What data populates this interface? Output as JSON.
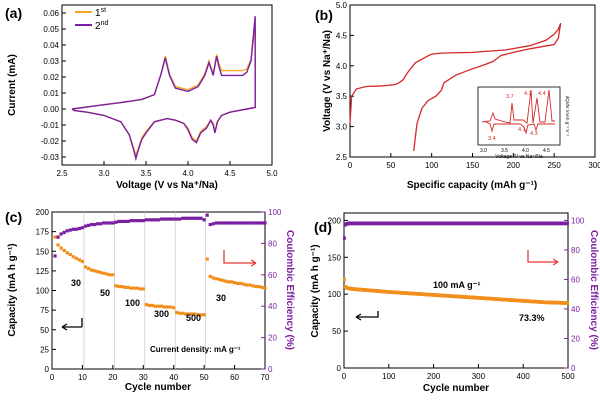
{
  "chart_data": [
    {
      "type": "line",
      "panel": "(a)",
      "xlabel": "Voltage (V vs Na⁺/Na)",
      "ylabel": "Current (mA)",
      "xlim": [
        2.5,
        5.0
      ],
      "ylim": [
        -0.035,
        0.065
      ],
      "xticks": [
        "2.5",
        "3.0",
        "3.5",
        "4.0",
        "4.5",
        "5.0"
      ],
      "yticks": [
        "-0.03",
        "-0.02",
        "-0.01",
        "0.00",
        "0.01",
        "0.02",
        "0.03",
        "0.04",
        "0.05",
        "0.06"
      ],
      "legend_placement": "top-left",
      "series": [
        {
          "name": "1st",
          "legend_main": "1",
          "legend_sup": "st",
          "color": "#f5a623",
          "oxidation_x": [
            2.62,
            2.9,
            3.2,
            3.45,
            3.6,
            3.68,
            3.73,
            3.78,
            3.85,
            4.0,
            4.12,
            4.2,
            4.25,
            4.3,
            4.34,
            4.37,
            4.4,
            4.45,
            4.5,
            4.55,
            4.6,
            4.65,
            4.7,
            4.75,
            4.8
          ],
          "oxidation_y": [
            0.0,
            0.002,
            0.004,
            0.006,
            0.009,
            0.022,
            0.033,
            0.022,
            0.014,
            0.012,
            0.015,
            0.022,
            0.03,
            0.022,
            0.034,
            0.028,
            0.024,
            0.024,
            0.024,
            0.024,
            0.024,
            0.024,
            0.025,
            0.031,
            0.052
          ],
          "reduction_x": [
            4.8,
            4.7,
            4.6,
            4.5,
            4.4,
            4.35,
            4.32,
            4.3,
            4.27,
            4.22,
            4.15,
            4.1,
            4.05,
            4.0,
            3.95,
            3.85,
            3.75,
            3.6,
            3.5,
            3.45,
            3.4,
            3.38,
            3.35,
            3.3,
            3.2,
            3.0,
            2.8,
            2.65,
            2.62
          ],
          "reduction_y": [
            0.001,
            0.0,
            -0.001,
            -0.002,
            -0.004,
            -0.008,
            -0.014,
            -0.009,
            -0.007,
            -0.011,
            -0.014,
            -0.02,
            -0.018,
            -0.012,
            -0.009,
            -0.007,
            -0.006,
            -0.008,
            -0.014,
            -0.018,
            -0.026,
            -0.029,
            -0.024,
            -0.016,
            -0.008,
            -0.004,
            -0.002,
            -0.001,
            0.0
          ]
        },
        {
          "name": "2nd",
          "legend_main": "2",
          "legend_sup": "nd",
          "color": "#7b1fa2",
          "oxidation_x": [
            2.62,
            2.9,
            3.2,
            3.45,
            3.6,
            3.68,
            3.73,
            3.78,
            3.85,
            4.0,
            4.12,
            4.2,
            4.25,
            4.3,
            4.34,
            4.37,
            4.4,
            4.45,
            4.5,
            4.55,
            4.6,
            4.65,
            4.7,
            4.75,
            4.8
          ],
          "oxidation_y": [
            0.0,
            0.002,
            0.004,
            0.006,
            0.009,
            0.022,
            0.032,
            0.021,
            0.013,
            0.011,
            0.014,
            0.021,
            0.029,
            0.021,
            0.033,
            0.026,
            0.021,
            0.021,
            0.021,
            0.021,
            0.021,
            0.021,
            0.023,
            0.03,
            0.058
          ],
          "reduction_x": [
            4.8,
            4.7,
            4.6,
            4.5,
            4.4,
            4.35,
            4.32,
            4.3,
            4.27,
            4.22,
            4.15,
            4.1,
            4.05,
            4.0,
            3.95,
            3.85,
            3.75,
            3.6,
            3.5,
            3.45,
            3.4,
            3.38,
            3.35,
            3.3,
            3.2,
            3.0,
            2.8,
            2.65,
            2.62
          ],
          "reduction_y": [
            0.001,
            0.0,
            -0.001,
            -0.002,
            -0.004,
            -0.008,
            -0.015,
            -0.01,
            -0.007,
            -0.012,
            -0.015,
            -0.021,
            -0.019,
            -0.013,
            -0.009,
            -0.007,
            -0.006,
            -0.008,
            -0.015,
            -0.019,
            -0.027,
            -0.031,
            -0.025,
            -0.016,
            -0.008,
            -0.004,
            -0.002,
            -0.001,
            0.0
          ]
        }
      ]
    },
    {
      "type": "line",
      "panel": "(b)",
      "xlabel": "Specific capacity (mAh g⁻¹)",
      "ylabel": "Voltage (V vs Na⁺/Na)",
      "xlim": [
        0,
        300
      ],
      "ylim": [
        2.5,
        5.0
      ],
      "xticks": [
        "0",
        "50",
        "100",
        "150",
        "200",
        "250",
        "300"
      ],
      "yticks": [
        "2.5",
        "3.0",
        "3.5",
        "4.0",
        "4.5",
        "5.0"
      ],
      "color": "#d62728",
      "series": [
        {
          "name": "",
          "x": [
            0,
            2,
            8,
            20,
            40,
            55,
            60,
            65,
            70,
            80,
            95,
            100,
            105,
            115,
            150,
            190,
            220,
            240,
            250,
            255,
            257,
            258,
            255,
            250,
            220,
            200,
            185,
            180,
            175,
            165,
            150,
            130,
            115,
            112,
            105,
            100,
            97,
            95,
            88,
            82,
            78
          ],
          "y": [
            3.05,
            3.5,
            3.62,
            3.66,
            3.67,
            3.69,
            3.72,
            3.77,
            3.88,
            4.05,
            4.16,
            4.19,
            4.2,
            4.21,
            4.22,
            4.26,
            4.33,
            4.42,
            4.52,
            4.6,
            4.67,
            4.7,
            4.45,
            4.35,
            4.28,
            4.22,
            4.17,
            4.12,
            4.07,
            4.02,
            3.95,
            3.85,
            3.72,
            3.6,
            3.5,
            3.46,
            3.44,
            3.42,
            3.3,
            3.05,
            2.6
          ]
        }
      ],
      "inset": {
        "type": "line",
        "xlabel": "Voltage /V vs Na⁺/Na",
        "ylabel": "dQ/dV /mAh g⁻¹ V⁻¹",
        "xlim": [
          3.0,
          4.7
        ],
        "xticks": [
          "3.0",
          "3.5",
          "4.0",
          "4.5"
        ],
        "peak_labels": [
          "3.7",
          "4.2",
          "4.4",
          "3.4",
          "4.1",
          "4.3"
        ],
        "color": "#d62728"
      }
    },
    {
      "type": "scatter",
      "panel": "(c)",
      "xlabel": "Cycle number",
      "ylabel": "Capacity (mA h g⁻¹)",
      "y2label": "Coulombic Efficiency (%)",
      "xlim": [
        0,
        70
      ],
      "ylim": [
        0,
        200
      ],
      "y2lim": [
        0,
        100
      ],
      "xticks": [
        "0",
        "10",
        "20",
        "30",
        "40",
        "50",
        "60",
        "70"
      ],
      "yticks": [
        "0",
        "25",
        "50",
        "75",
        "100",
        "125",
        "150",
        "175",
        "200"
      ],
      "y2ticks": [
        "0",
        "20",
        "40",
        "60",
        "80",
        "100"
      ],
      "rate_labels": [
        "30",
        "50",
        "100",
        "300",
        "500",
        "30"
      ],
      "annotation": "Current density: mA g⁻¹",
      "capacity_color": "#f28e1c",
      "ce_color": "#7b1fa2",
      "capacity": {
        "x": [
          1,
          2,
          3,
          4,
          5,
          6,
          7,
          8,
          9,
          10,
          11,
          12,
          13,
          14,
          15,
          16,
          17,
          18,
          19,
          20,
          21,
          22,
          23,
          24,
          25,
          26,
          27,
          28,
          29,
          30,
          31,
          32,
          33,
          34,
          35,
          36,
          37,
          38,
          39,
          40,
          41,
          42,
          43,
          44,
          45,
          46,
          47,
          48,
          49,
          50,
          51,
          52,
          53,
          54,
          55,
          56,
          57,
          58,
          59,
          60,
          61,
          62,
          63,
          64,
          65,
          66,
          67,
          68,
          69,
          70
        ],
        "y": [
          168,
          158,
          154,
          151,
          148,
          146,
          143,
          141,
          139,
          137,
          130,
          128,
          126,
          125,
          124,
          123,
          122,
          121,
          120,
          120,
          106,
          105,
          105,
          104,
          104,
          103,
          103,
          103,
          102,
          102,
          82,
          81,
          81,
          80,
          80,
          80,
          79,
          79,
          79,
          78,
          72,
          71,
          71,
          70,
          70,
          70,
          70,
          69,
          69,
          69,
          140,
          118,
          116,
          115,
          114,
          113,
          112,
          111,
          111,
          110,
          109,
          109,
          108,
          107,
          107,
          106,
          105,
          105,
          104,
          103
        ]
      },
      "coulombic_efficiency": {
        "x": [
          1,
          2,
          3,
          4,
          5,
          6,
          7,
          8,
          9,
          10,
          11,
          12,
          13,
          14,
          15,
          16,
          17,
          18,
          19,
          20,
          21,
          22,
          23,
          24,
          25,
          26,
          27,
          28,
          29,
          30,
          31,
          32,
          33,
          34,
          35,
          36,
          37,
          38,
          39,
          40,
          41,
          42,
          43,
          44,
          45,
          46,
          47,
          48,
          49,
          50,
          51,
          52,
          53,
          54,
          55,
          56,
          57,
          58,
          59,
          60,
          61,
          62,
          63,
          64,
          65,
          66,
          67,
          68,
          69,
          70
        ],
        "y": [
          72,
          84,
          86,
          87,
          88,
          88.5,
          89,
          89,
          89.5,
          90,
          91,
          91.5,
          92,
          92,
          92.5,
          92.5,
          93,
          93,
          93,
          93,
          93.5,
          94,
          94,
          94,
          94,
          94.5,
          94.5,
          94.5,
          94.5,
          94.5,
          95,
          95,
          95,
          95,
          95,
          95.5,
          95.5,
          95.5,
          95.5,
          95.5,
          95.5,
          95.5,
          96,
          96,
          96,
          96,
          96,
          96,
          96,
          95,
          98,
          92,
          92.5,
          93,
          93,
          93,
          93,
          93,
          93,
          93,
          93,
          93,
          93,
          93,
          93,
          93,
          93,
          93,
          93,
          93
        ]
      }
    },
    {
      "type": "scatter",
      "panel": "(d)",
      "xlabel": "Cycle number",
      "ylabel": "Capacity (mA h g⁻¹)",
      "y2label": "Coulombic Efficiency (%)",
      "xlim": [
        0,
        500
      ],
      "ylim": [
        0,
        210
      ],
      "y2lim": [
        0,
        105
      ],
      "xticks": [
        "0",
        "100",
        "200",
        "300",
        "400",
        "500"
      ],
      "yticks": [
        "0",
        "50",
        "100",
        "150",
        "200"
      ],
      "y2ticks": [
        "0",
        "20",
        "40",
        "60",
        "80",
        "100"
      ],
      "current_label": "100 mA g⁻¹",
      "retention_label": "73.3%",
      "capacity_color": "#f28e1c",
      "ce_color": "#7b1fa2",
      "capacity": {
        "x": [
          1,
          2,
          3,
          5,
          10,
          20,
          40,
          60,
          80,
          100,
          150,
          200,
          250,
          300,
          350,
          400,
          450,
          500
        ],
        "y": [
          120,
          112,
          110,
          109,
          108,
          107,
          106,
          105,
          104,
          103,
          101,
          99,
          97,
          95,
          93,
          91,
          89,
          88
        ]
      },
      "coulombic_efficiency": {
        "x": [
          1,
          2,
          3,
          5,
          10,
          50,
          100,
          200,
          300,
          400,
          500
        ],
        "y": [
          88,
          95,
          97,
          97.5,
          98,
          98,
          98,
          98,
          98,
          98,
          98
        ]
      }
    }
  ]
}
